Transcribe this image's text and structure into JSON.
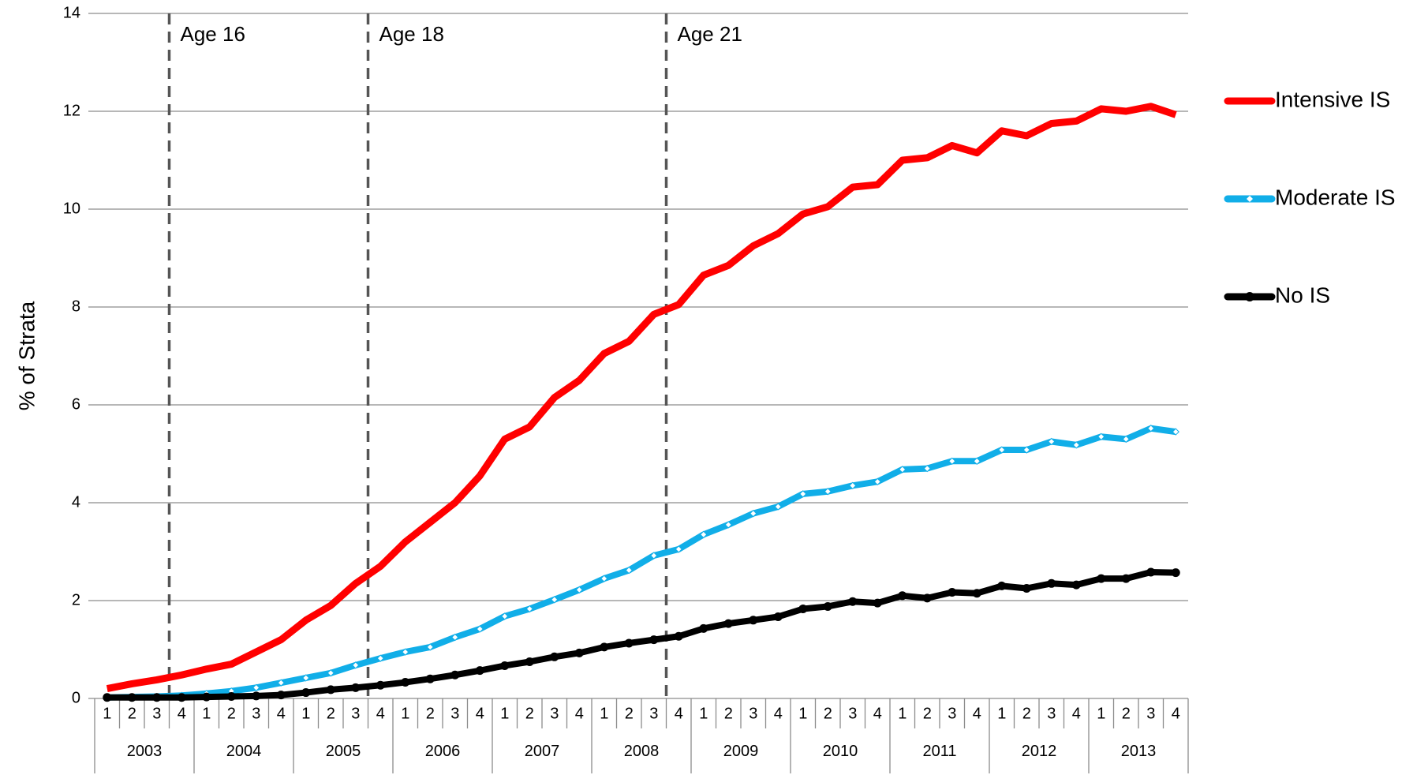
{
  "chart_data": {
    "type": "line",
    "y_label": "% of Strata",
    "categories": [
      "1",
      "2",
      "3",
      "4",
      "1",
      "2",
      "3",
      "4",
      "1",
      "2",
      "3",
      "4",
      "1",
      "2",
      "3",
      "4",
      "1",
      "2",
      "3",
      "4",
      "1",
      "2",
      "3",
      "4",
      "1",
      "2",
      "3",
      "4",
      "1",
      "2",
      "3",
      "4",
      "1",
      "2",
      "3",
      "4",
      "1",
      "2",
      "3",
      "4",
      "1",
      "2",
      "3",
      "4"
    ],
    "groups": [
      "2003",
      "2004",
      "2005",
      "2006",
      "2007",
      "2008",
      "2009",
      "2010",
      "2011",
      "2012",
      "2013"
    ],
    "series": [
      {
        "name": "Intensive IS",
        "color": "#ff0000",
        "marker": null,
        "values": [
          0.2,
          0.3,
          0.38,
          0.48,
          0.6,
          0.7,
          0.95,
          1.2,
          1.6,
          1.9,
          2.35,
          2.7,
          3.2,
          3.6,
          4.0,
          4.55,
          5.3,
          5.55,
          6.15,
          6.5,
          7.05,
          7.3,
          7.85,
          8.05,
          8.65,
          8.85,
          9.25,
          9.5,
          9.9,
          10.05,
          10.45,
          10.5,
          11.0,
          11.05,
          11.3,
          11.15,
          11.6,
          11.5,
          11.75,
          11.8,
          12.05,
          12.0,
          12.1,
          11.93
        ]
      },
      {
        "name": "Moderate IS",
        "color": "#11aee8",
        "marker": "diamond",
        "values": [
          0.02,
          0.03,
          0.04,
          0.06,
          0.1,
          0.15,
          0.22,
          0.32,
          0.42,
          0.52,
          0.68,
          0.82,
          0.95,
          1.05,
          1.25,
          1.42,
          1.68,
          1.83,
          2.02,
          2.22,
          2.45,
          2.62,
          2.92,
          3.05,
          3.35,
          3.55,
          3.78,
          3.92,
          4.18,
          4.23,
          4.35,
          4.43,
          4.68,
          4.7,
          4.85,
          4.85,
          5.08,
          5.08,
          5.25,
          5.18,
          5.35,
          5.3,
          5.52,
          5.45
        ]
      },
      {
        "name": "No IS",
        "color": "#000000",
        "marker": "circle",
        "values": [
          0.02,
          0.02,
          0.02,
          0.02,
          0.03,
          0.04,
          0.05,
          0.07,
          0.12,
          0.18,
          0.22,
          0.27,
          0.33,
          0.4,
          0.48,
          0.57,
          0.67,
          0.75,
          0.85,
          0.93,
          1.05,
          1.13,
          1.2,
          1.27,
          1.43,
          1.53,
          1.6,
          1.67,
          1.83,
          1.88,
          1.98,
          1.95,
          2.1,
          2.05,
          2.17,
          2.15,
          2.3,
          2.25,
          2.35,
          2.32,
          2.45,
          2.45,
          2.58,
          2.57
        ]
      }
    ],
    "annotations": [
      {
        "text": "Age 16",
        "index": 3
      },
      {
        "text": "Age 18",
        "index": 11
      },
      {
        "text": "Age 21",
        "index": 23
      }
    ],
    "ylim": [
      0,
      14
    ],
    "yticks": [
      0,
      2,
      4,
      6,
      8,
      10,
      12,
      14
    ],
    "grid": true,
    "legend": "right"
  }
}
